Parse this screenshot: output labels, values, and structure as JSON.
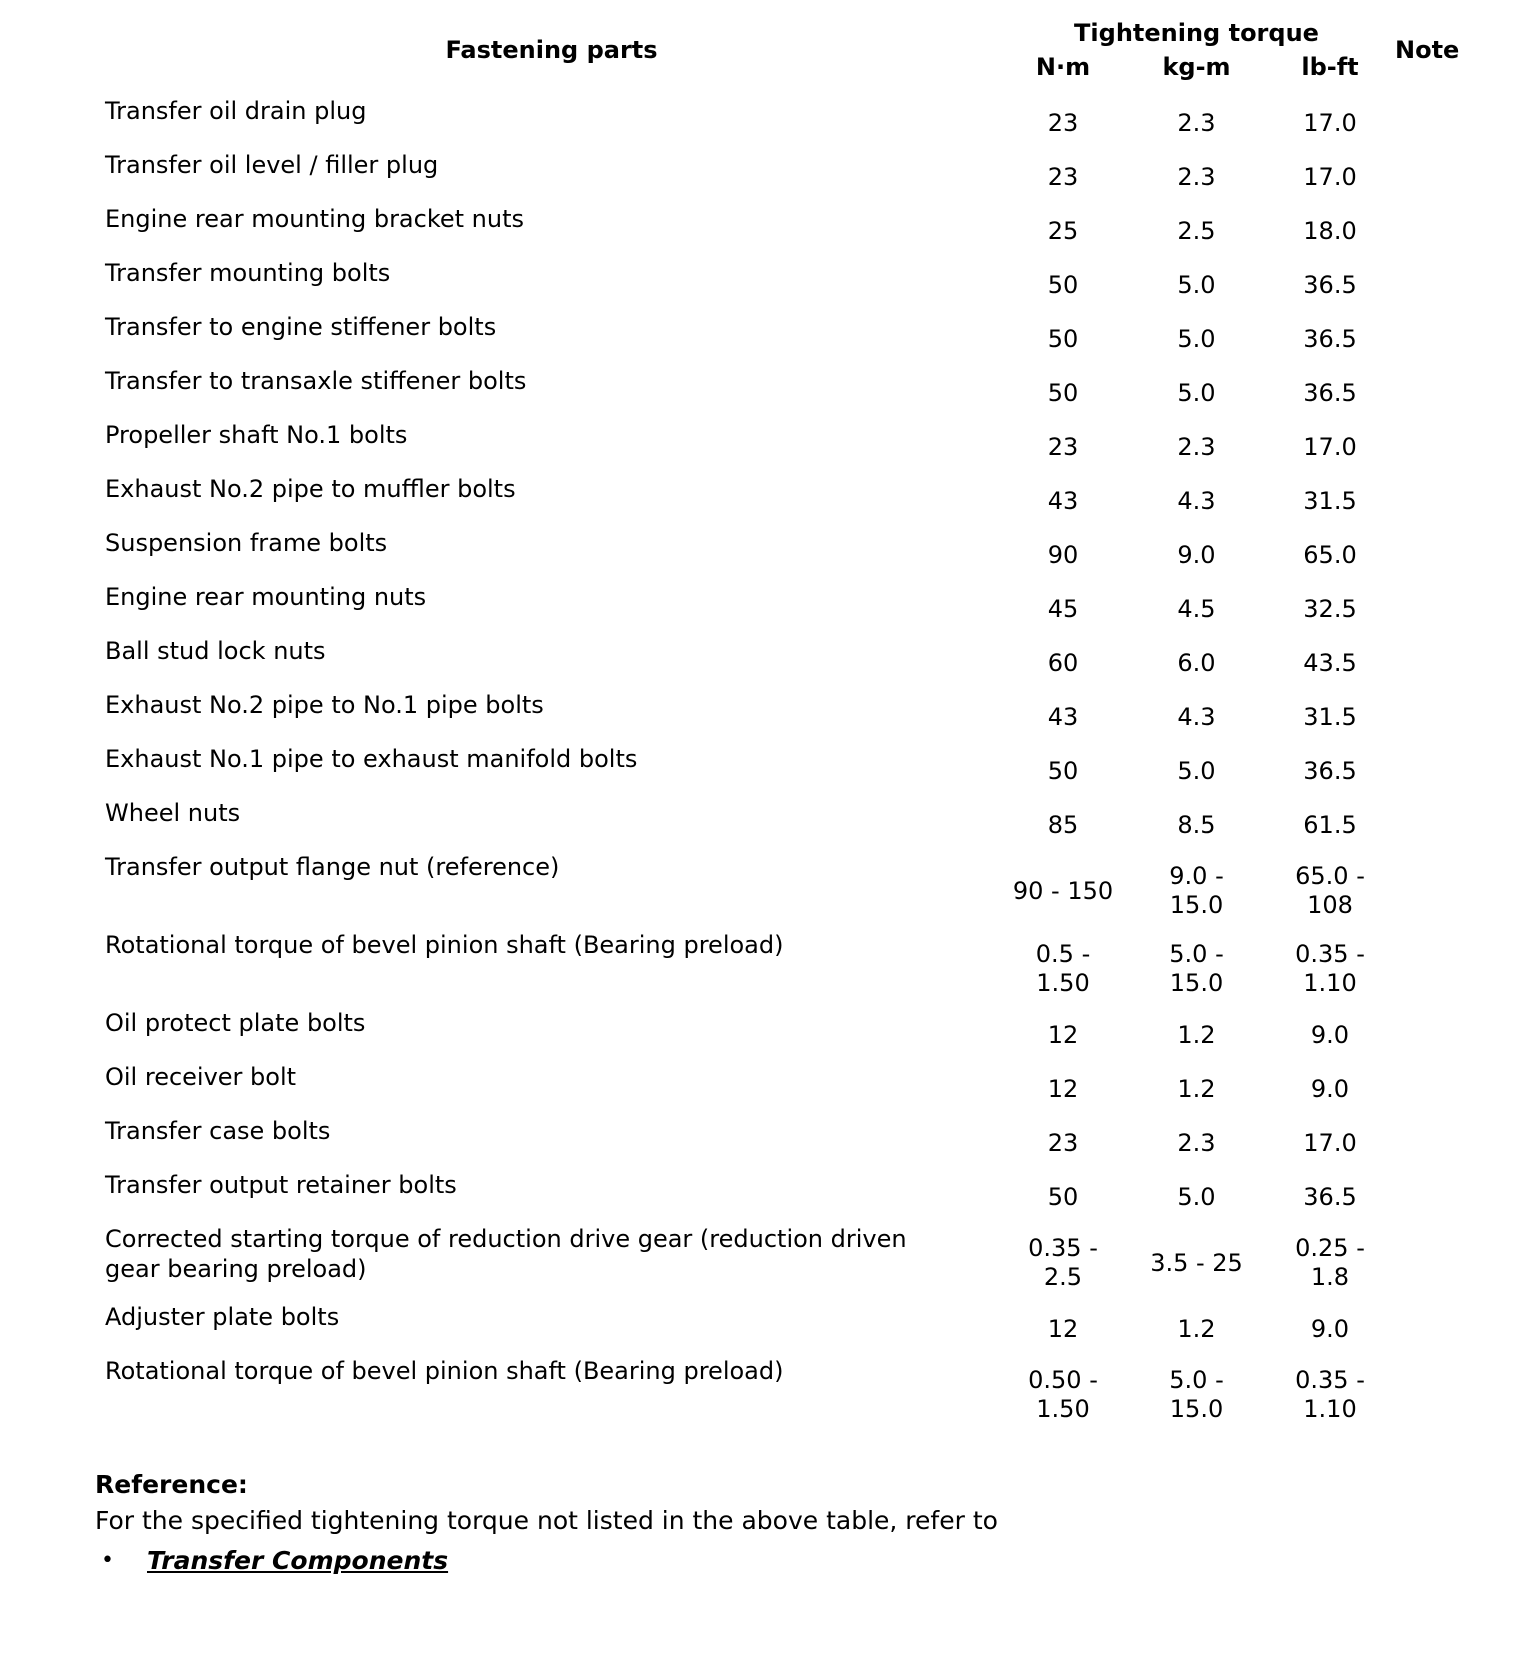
{
  "table": {
    "header": {
      "fastening_parts": "Fastening parts",
      "tightening_torque": "Tightening torque",
      "units": [
        "N·m",
        "kg-m",
        "lb-ft"
      ],
      "note": "Note"
    },
    "rows": [
      {
        "part": "Transfer oil drain plug",
        "nm": "23",
        "kgm": "2.3",
        "lbft": "17.0",
        "note": ""
      },
      {
        "part": "Transfer oil level / filler plug",
        "nm": "23",
        "kgm": "2.3",
        "lbft": "17.0",
        "note": ""
      },
      {
        "part": "Engine rear mounting bracket nuts",
        "nm": "25",
        "kgm": "2.5",
        "lbft": "18.0",
        "note": ""
      },
      {
        "part": "Transfer mounting bolts",
        "nm": "50",
        "kgm": "5.0",
        "lbft": "36.5",
        "note": ""
      },
      {
        "part": "Transfer to engine stiffener bolts",
        "nm": "50",
        "kgm": "5.0",
        "lbft": "36.5",
        "note": ""
      },
      {
        "part": "Transfer to transaxle stiffener bolts",
        "nm": "50",
        "kgm": "5.0",
        "lbft": "36.5",
        "note": ""
      },
      {
        "part": "Propeller shaft No.1 bolts",
        "nm": "23",
        "kgm": "2.3",
        "lbft": "17.0",
        "note": ""
      },
      {
        "part": "Exhaust No.2 pipe to muffler bolts",
        "nm": "43",
        "kgm": "4.3",
        "lbft": "31.5",
        "note": ""
      },
      {
        "part": "Suspension frame bolts",
        "nm": "90",
        "kgm": "9.0",
        "lbft": "65.0",
        "note": ""
      },
      {
        "part": "Engine rear mounting nuts",
        "nm": "45",
        "kgm": "4.5",
        "lbft": "32.5",
        "note": ""
      },
      {
        "part": "Ball stud lock nuts",
        "nm": "60",
        "kgm": "6.0",
        "lbft": "43.5",
        "note": ""
      },
      {
        "part": "Exhaust No.2 pipe to No.1 pipe bolts",
        "nm": "43",
        "kgm": "4.3",
        "lbft": "31.5",
        "note": ""
      },
      {
        "part": "Exhaust No.1 pipe to exhaust manifold bolts",
        "nm": "50",
        "kgm": "5.0",
        "lbft": "36.5",
        "note": ""
      },
      {
        "part": "Wheel nuts",
        "nm": "85",
        "kgm": "8.5",
        "lbft": "61.5",
        "note": ""
      },
      {
        "part": "Transfer output flange nut (reference)",
        "nm": "90 - 150",
        "kgm": "9.0 -\n15.0",
        "lbft": "65.0 -\n108",
        "note": ""
      },
      {
        "part": "Rotational torque of bevel pinion shaft (Bearing preload)",
        "nm": "0.5 -\n1.50",
        "kgm": "5.0 -\n15.0",
        "lbft": "0.35 -\n1.10",
        "note": ""
      },
      {
        "part": "Oil protect plate bolts",
        "nm": "12",
        "kgm": "1.2",
        "lbft": "9.0",
        "note": ""
      },
      {
        "part": "Oil receiver bolt",
        "nm": "12",
        "kgm": "1.2",
        "lbft": "9.0",
        "note": ""
      },
      {
        "part": "Transfer case bolts",
        "nm": "23",
        "kgm": "2.3",
        "lbft": "17.0",
        "note": ""
      },
      {
        "part": "Transfer output retainer bolts",
        "nm": "50",
        "kgm": "5.0",
        "lbft": "36.5",
        "note": ""
      },
      {
        "part": "Corrected starting torque of reduction drive gear (reduction driven\ngear bearing preload)",
        "nm": "0.35 -\n2.5",
        "kgm": "3.5 - 25",
        "lbft": "0.25 -\n1.8",
        "note": ""
      },
      {
        "part": "Adjuster plate bolts",
        "nm": "12",
        "kgm": "1.2",
        "lbft": "9.0",
        "note": ""
      },
      {
        "part": "Rotational torque of bevel pinion shaft (Bearing preload)",
        "nm": "0.50 -\n1.50",
        "kgm": "5.0 -\n15.0",
        "lbft": "0.35 -\n1.10",
        "note": ""
      }
    ]
  },
  "reference": {
    "heading": "Reference:",
    "body": "For the specified tightening torque not listed in the above table, refer to",
    "bullet_glyph": "•",
    "links": [
      "Transfer Components"
    ]
  }
}
